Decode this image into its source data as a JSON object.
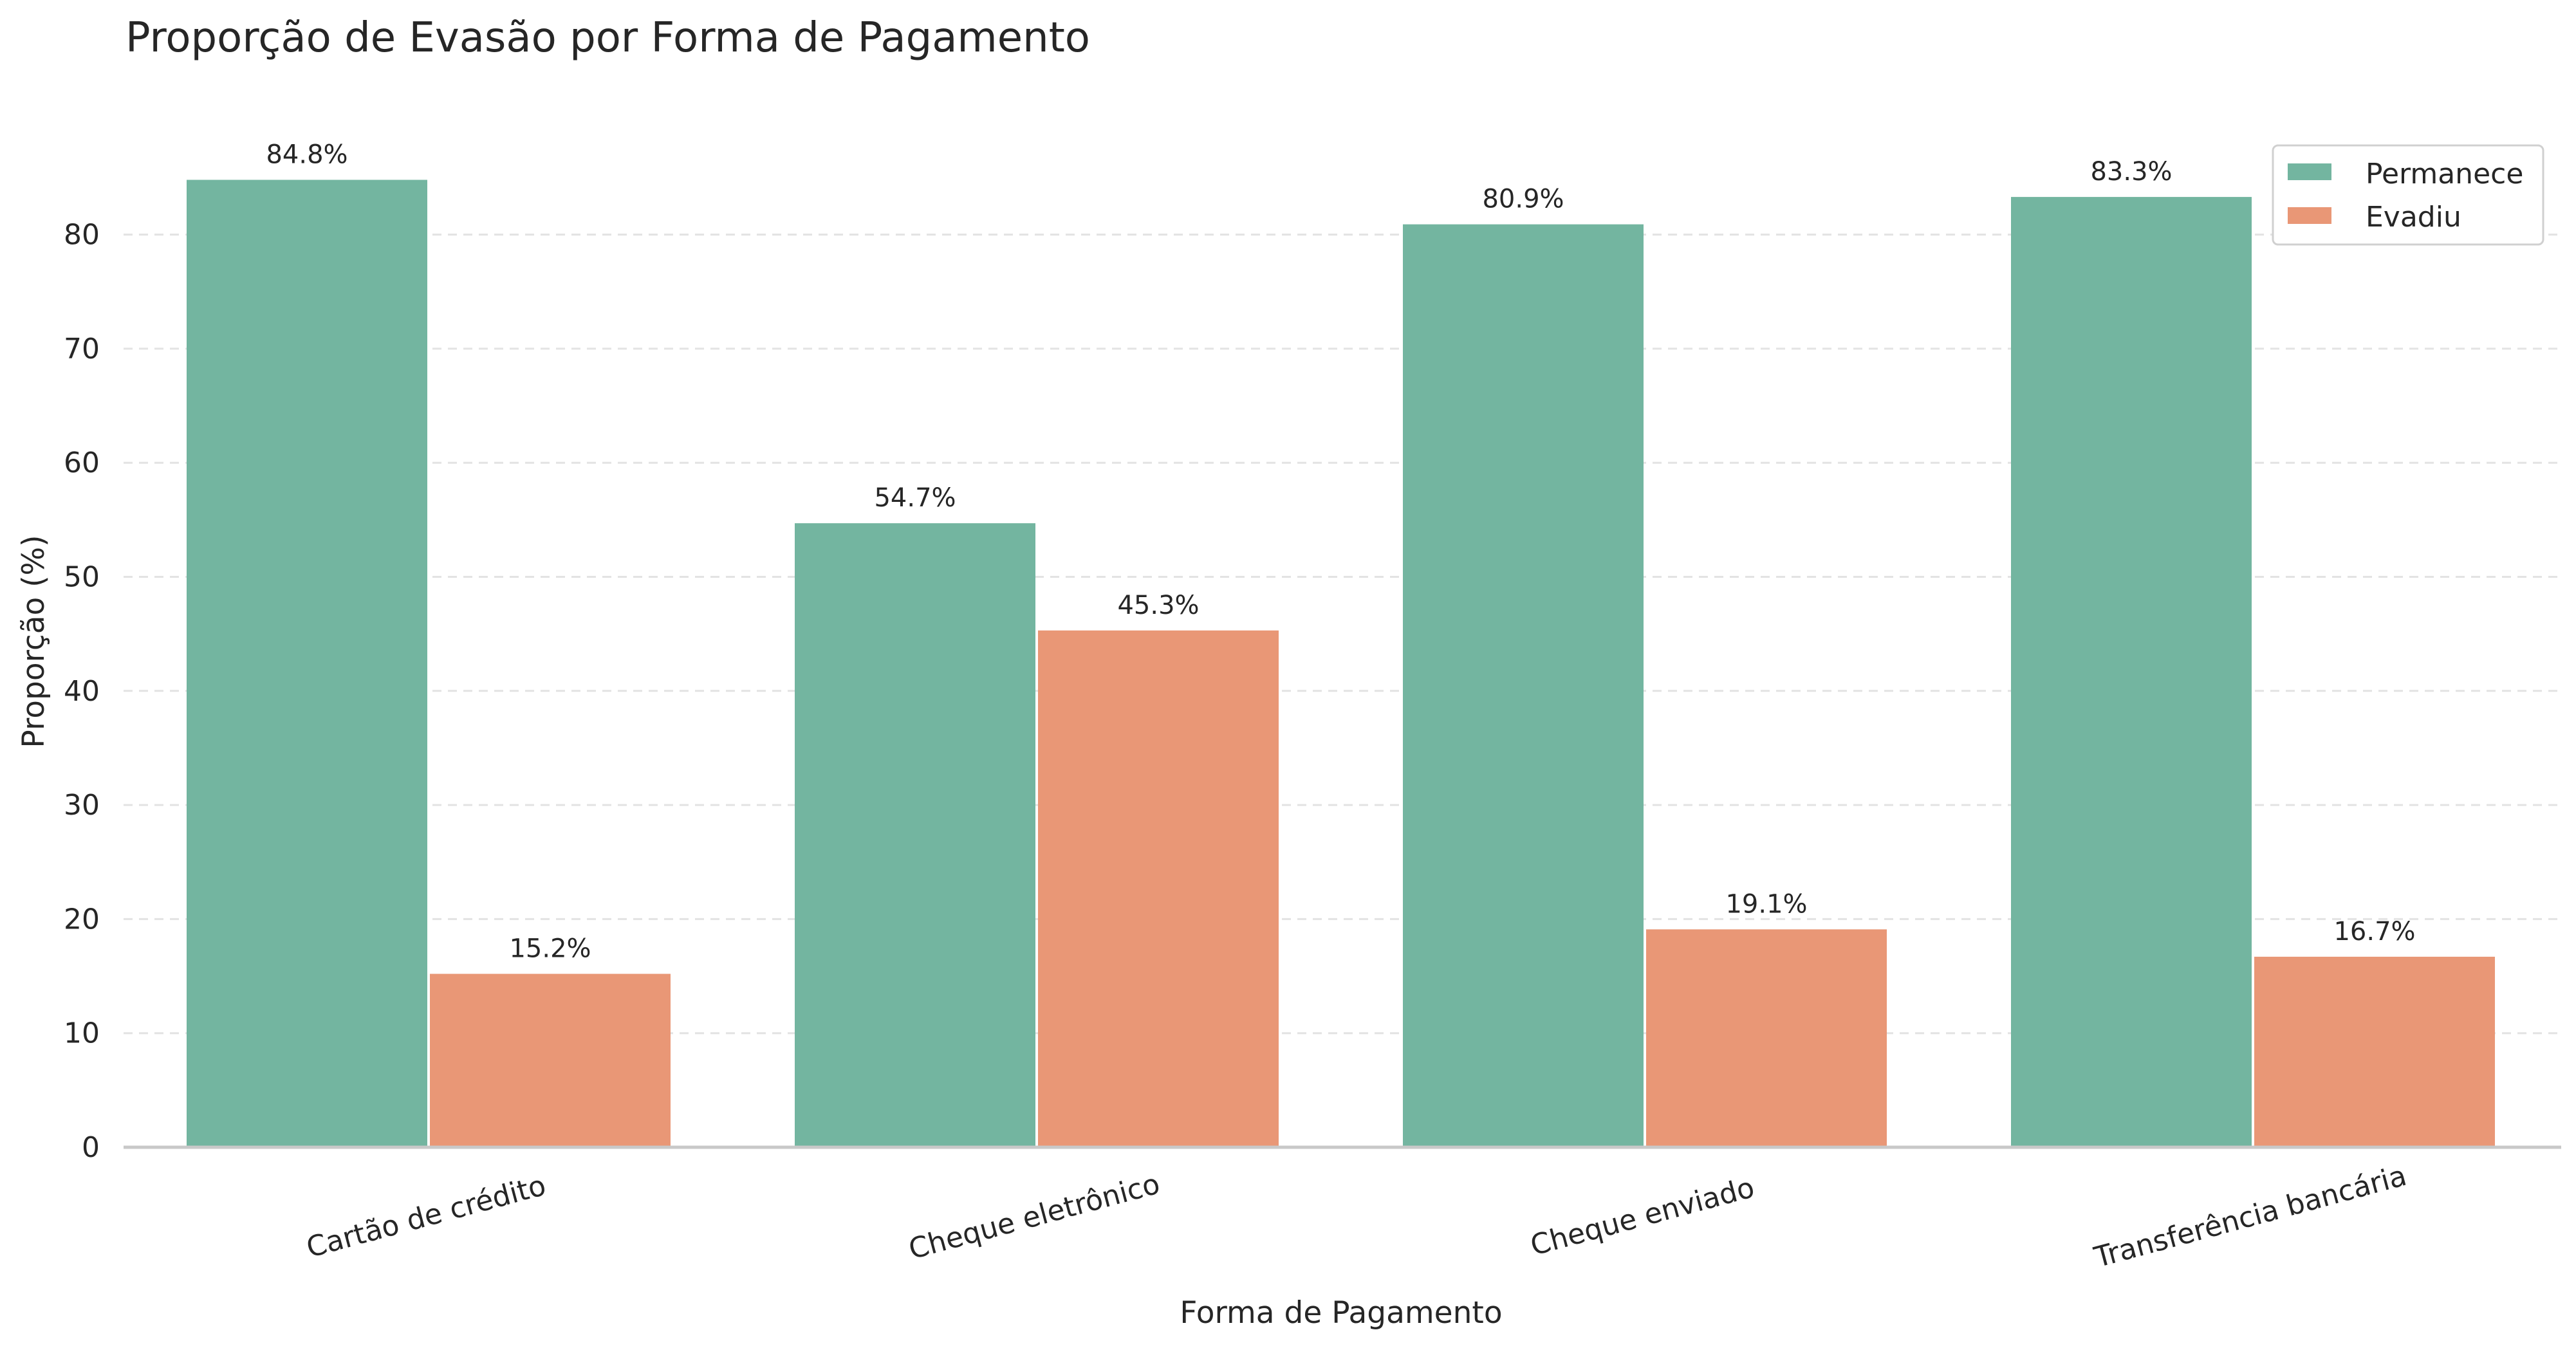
{
  "chart_data": {
    "type": "bar",
    "title": "Proporção de Evasão por Forma de Pagamento",
    "xlabel": "Forma de Pagamento",
    "ylabel": "Proporção (%)",
    "ylim": [
      0,
      90
    ],
    "yticks": [
      0,
      10,
      20,
      30,
      40,
      50,
      60,
      70,
      80
    ],
    "yticks_text": [
      "0",
      "10",
      "20",
      "30",
      "40",
      "50",
      "60",
      "70",
      "80"
    ],
    "grid": true,
    "legend_position": "top-right",
    "categories": [
      "Cartão de crédito",
      "Cheque eletrônico",
      "Cheque enviado",
      "Transferência bancária"
    ],
    "series": [
      {
        "name": "Permanece",
        "color": "#73b5a0",
        "values": [
          84.8,
          54.7,
          80.9,
          83.3
        ],
        "value_labels": [
          "84.8%",
          "54.7%",
          "80.9%",
          "83.3%"
        ]
      },
      {
        "name": "Evadiu",
        "color": "#e99776",
        "values": [
          15.2,
          45.3,
          19.1,
          16.7
        ],
        "value_labels": [
          "15.2%",
          "45.3%",
          "19.1%",
          "16.7%"
        ]
      }
    ]
  }
}
